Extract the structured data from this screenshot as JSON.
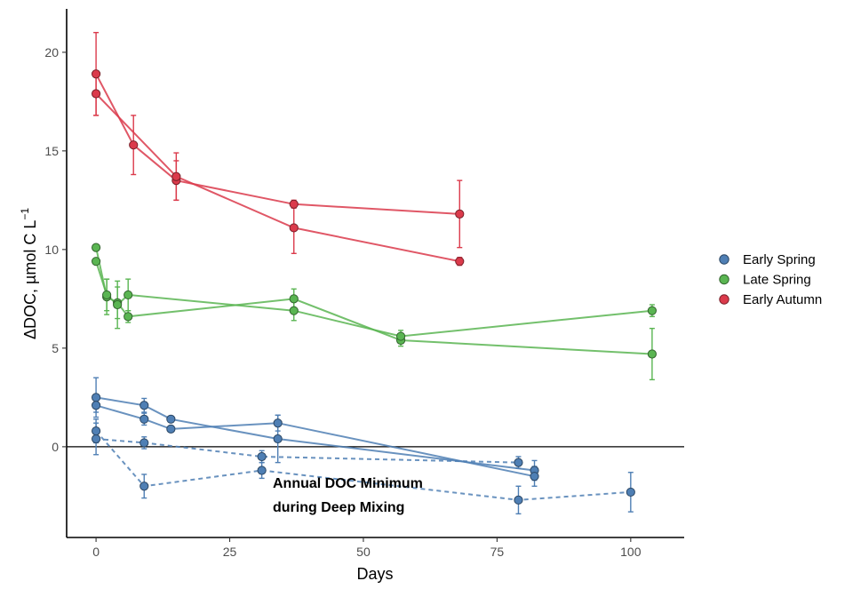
{
  "chart_data": {
    "type": "line",
    "xlabel": "Days",
    "ylabel_main": "ΔDOC, µmol C L",
    "ylabel_sup": "−1",
    "xlim": [
      -5.5,
      110
    ],
    "ylim": [
      -4.6,
      22.2
    ],
    "xticks": [
      0,
      25,
      50,
      75,
      100
    ],
    "yticks": [
      0,
      5,
      10,
      15,
      20
    ],
    "hline": 0,
    "grid": false,
    "legend_position": "right",
    "annotation": [
      "Annual DOC Minimum",
      "during Deep Mixing"
    ],
    "series": [
      {
        "name": "Early Spring",
        "color": "#4f7fb4",
        "lines": [
          {
            "style": "solid",
            "points": [
              {
                "x": 0,
                "y": 2.5,
                "err": 1.0
              },
              {
                "x": 9,
                "y": 2.1,
                "err": 0.35
              },
              {
                "x": 14,
                "y": 1.4,
                "err": 0.15
              },
              {
                "x": 34,
                "y": 0.4,
                "err": 1.2
              },
              {
                "x": 82,
                "y": -1.2,
                "err": 0.5
              }
            ]
          },
          {
            "style": "solid",
            "points": [
              {
                "x": 0,
                "y": 2.1,
                "err": 0.35
              },
              {
                "x": 9,
                "y": 1.4,
                "err": 0.3
              },
              {
                "x": 14,
                "y": 0.9,
                "err": 0.15
              },
              {
                "x": 34,
                "y": 1.2,
                "err": 0.4
              },
              {
                "x": 82,
                "y": -1.5,
                "err": 0.5
              }
            ]
          },
          {
            "style": "dashed",
            "points": [
              {
                "x": 0,
                "y": 0.4,
                "err": 0.8
              },
              {
                "x": 9,
                "y": 0.2,
                "err": 0.3
              },
              {
                "x": 31,
                "y": -0.5,
                "err": 0.3
              },
              {
                "x": 79,
                "y": -0.8,
                "err": 0.3
              }
            ]
          },
          {
            "style": "dashed",
            "points": [
              {
                "x": 0,
                "y": 0.8,
                "err": 0.6
              },
              {
                "x": 9,
                "y": -2.0,
                "err": 0.6
              },
              {
                "x": 31,
                "y": -1.2,
                "err": 0.4
              },
              {
                "x": 79,
                "y": -2.7,
                "err": 0.7
              },
              {
                "x": 100,
                "y": -2.3,
                "err": 1.0
              }
            ]
          }
        ]
      },
      {
        "name": "Late Spring",
        "color": "#5ab552",
        "lines": [
          {
            "style": "solid",
            "points": [
              {
                "x": 0,
                "y": 10.1,
                "err": 0
              },
              {
                "x": 2,
                "y": 7.6,
                "err": 0.9
              },
              {
                "x": 4,
                "y": 7.3,
                "err": 0.8
              },
              {
                "x": 6,
                "y": 6.6,
                "err": 0.3
              },
              {
                "x": 37,
                "y": 7.5,
                "err": 0.5
              },
              {
                "x": 57,
                "y": 5.4,
                "err": 0.3
              },
              {
                "x": 104,
                "y": 4.7,
                "err": 1.3
              }
            ]
          },
          {
            "style": "solid",
            "points": [
              {
                "x": 0,
                "y": 9.4,
                "err": 0
              },
              {
                "x": 2,
                "y": 7.7,
                "err": 0.8
              },
              {
                "x": 4,
                "y": 7.2,
                "err": 1.2
              },
              {
                "x": 6,
                "y": 7.7,
                "err": 0.8
              },
              {
                "x": 37,
                "y": 6.9,
                "err": 0.5
              },
              {
                "x": 57,
                "y": 5.6,
                "err": 0.3
              },
              {
                "x": 104,
                "y": 6.9,
                "err": 0.3
              }
            ]
          }
        ]
      },
      {
        "name": "Early Autumn",
        "color": "#db3a4b",
        "lines": [
          {
            "style": "solid",
            "points": [
              {
                "x": 0,
                "y": 18.9,
                "err": 2.1
              },
              {
                "x": 7,
                "y": 15.3,
                "err": 1.5
              },
              {
                "x": 15,
                "y": 13.5,
                "err": 1.0
              },
              {
                "x": 37,
                "y": 12.3,
                "err": 0.2
              },
              {
                "x": 68,
                "y": 11.8,
                "err": 1.7
              }
            ]
          },
          {
            "style": "solid",
            "points": [
              {
                "x": 0,
                "y": 17.9,
                "err": 1.1
              },
              {
                "x": 15,
                "y": 13.7,
                "err": 1.2
              },
              {
                "x": 37,
                "y": 11.1,
                "err": 1.3
              },
              {
                "x": 68,
                "y": 9.4,
                "err": 0.2
              }
            ]
          }
        ]
      }
    ]
  }
}
